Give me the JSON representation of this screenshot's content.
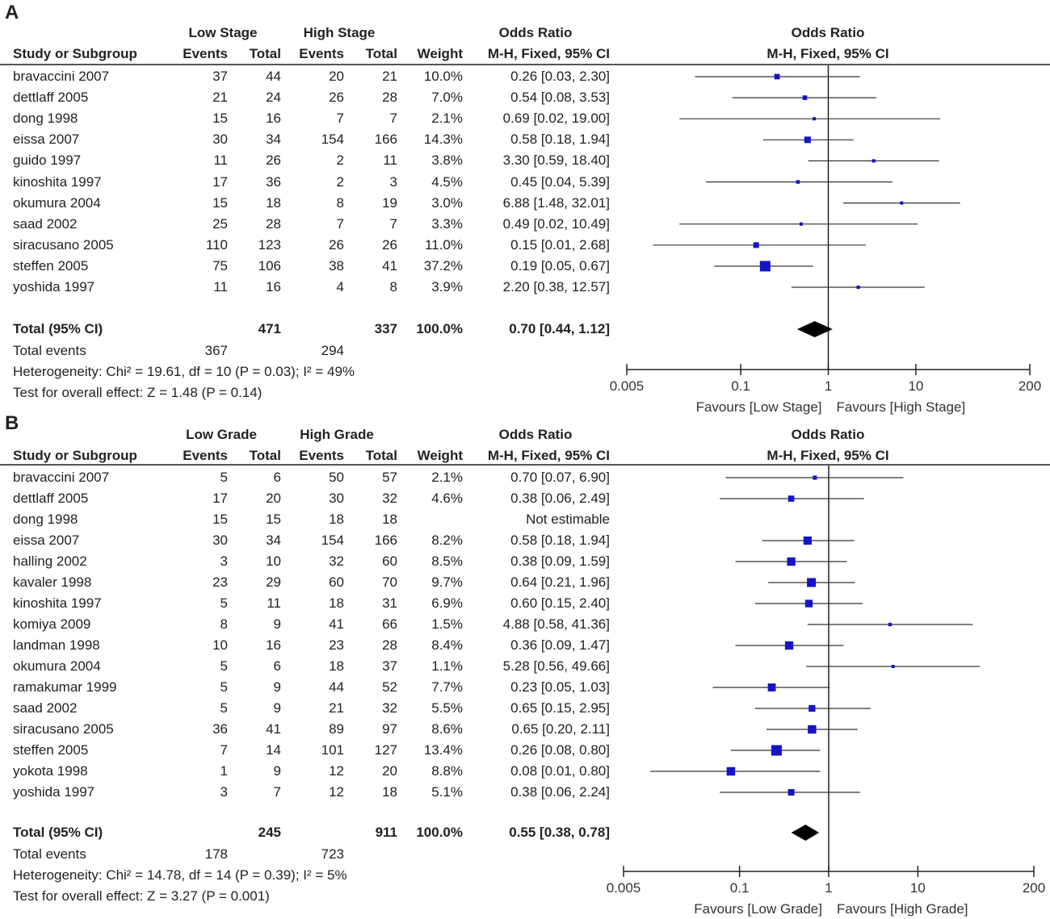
{
  "chart_data": [
    {
      "type": "forest",
      "panel_label": "A",
      "group_headers": {
        "low": "Low Stage",
        "high": "High Stage",
        "odds_ratio_left": "Odds Ratio",
        "odds_ratio_right": "Odds Ratio"
      },
      "columns": {
        "study": "Study or Subgroup",
        "events": "Events",
        "total": "Total",
        "weight": "Weight",
        "method_left": "M-H, Fixed, 95% CI",
        "method_right": "M-H, Fixed, 95% CI"
      },
      "studies": [
        {
          "name": "bravaccini 2007",
          "low_events": "37",
          "low_total": "44",
          "high_events": "20",
          "high_total": "21",
          "weight": "10.0%",
          "ci_text": "0.26 [0.03, 2.30]",
          "or": 0.26,
          "lo": 0.03,
          "hi": 2.3,
          "w": 10.0
        },
        {
          "name": "dettlaff 2005",
          "low_events": "21",
          "low_total": "24",
          "high_events": "26",
          "high_total": "28",
          "weight": "7.0%",
          "ci_text": "0.54 [0.08, 3.53]",
          "or": 0.54,
          "lo": 0.08,
          "hi": 3.53,
          "w": 7.0
        },
        {
          "name": "dong 1998",
          "low_events": "15",
          "low_total": "16",
          "high_events": "7",
          "high_total": "7",
          "weight": "2.1%",
          "ci_text": "0.69 [0.02, 19.00]",
          "or": 0.69,
          "lo": 0.02,
          "hi": 19.0,
          "w": 2.1
        },
        {
          "name": "eissa 2007",
          "low_events": "30",
          "low_total": "34",
          "high_events": "154",
          "high_total": "166",
          "weight": "14.3%",
          "ci_text": "0.58 [0.18, 1.94]",
          "or": 0.58,
          "lo": 0.18,
          "hi": 1.94,
          "w": 14.3
        },
        {
          "name": "guido 1997",
          "low_events": "11",
          "low_total": "26",
          "high_events": "2",
          "high_total": "11",
          "weight": "3.8%",
          "ci_text": "3.30 [0.59, 18.40]",
          "or": 3.3,
          "lo": 0.59,
          "hi": 18.4,
          "w": 3.8
        },
        {
          "name": "kinoshita 1997",
          "low_events": "17",
          "low_total": "36",
          "high_events": "2",
          "high_total": "3",
          "weight": "4.5%",
          "ci_text": "0.45 [0.04, 5.39]",
          "or": 0.45,
          "lo": 0.04,
          "hi": 5.39,
          "w": 4.5
        },
        {
          "name": "okumura 2004",
          "low_events": "15",
          "low_total": "18",
          "high_events": "8",
          "high_total": "19",
          "weight": "3.0%",
          "ci_text": "6.88 [1.48, 32.01]",
          "or": 6.88,
          "lo": 1.48,
          "hi": 32.01,
          "w": 3.0
        },
        {
          "name": "saad 2002",
          "low_events": "25",
          "low_total": "28",
          "high_events": "7",
          "high_total": "7",
          "weight": "3.3%",
          "ci_text": "0.49 [0.02, 10.49]",
          "or": 0.49,
          "lo": 0.02,
          "hi": 10.49,
          "w": 3.3
        },
        {
          "name": "siracusano 2005",
          "low_events": "110",
          "low_total": "123",
          "high_events": "26",
          "high_total": "26",
          "weight": "11.0%",
          "ci_text": "0.15 [0.01, 2.68]",
          "or": 0.15,
          "lo": 0.01,
          "hi": 2.68,
          "w": 11.0
        },
        {
          "name": "steffen 2005",
          "low_events": "75",
          "low_total": "106",
          "high_events": "38",
          "high_total": "41",
          "weight": "37.2%",
          "ci_text": "0.19 [0.05, 0.67]",
          "or": 0.19,
          "lo": 0.05,
          "hi": 0.67,
          "w": 37.2
        },
        {
          "name": "yoshida 1997",
          "low_events": "11",
          "low_total": "16",
          "high_events": "4",
          "high_total": "8",
          "weight": "3.9%",
          "ci_text": "2.20 [0.38, 12.57]",
          "or": 2.2,
          "lo": 0.38,
          "hi": 12.57,
          "w": 3.9
        }
      ],
      "total": {
        "label": "Total (95% CI)",
        "low_total": "471",
        "high_total": "337",
        "weight": "100.0%",
        "ci_text": "0.70 [0.44, 1.12]",
        "or": 0.7,
        "lo": 0.44,
        "hi": 1.12
      },
      "total_events": {
        "label": "Total events",
        "low": "367",
        "high": "294"
      },
      "heterogeneity": "Heterogeneity: Chi² = 19.61, df = 10 (P = 0.03); I² = 49%",
      "overall_effect": "Test for overall effect: Z = 1.48 (P = 0.14)",
      "x_scale": "log",
      "xlim": [
        0.005,
        200
      ],
      "x_ticks": [
        0.005,
        0.1,
        1,
        10,
        200
      ],
      "x_tick_labels": [
        "0.005",
        "0.1",
        "1",
        "10",
        "200"
      ],
      "favours_left": "Favours [Low Stage]",
      "favours_right": "Favours [High Stage]"
    },
    {
      "type": "forest",
      "panel_label": "B",
      "group_headers": {
        "low": "Low Grade",
        "high": "High Grade",
        "odds_ratio_left": "Odds Ratio",
        "odds_ratio_right": "Odds Ratio"
      },
      "columns": {
        "study": "Study or Subgroup",
        "events": "Events",
        "total": "Total",
        "weight": "Weight",
        "method_left": "M-H, Fixed, 95% CI",
        "method_right": "M-H, Fixed, 95% CI"
      },
      "studies": [
        {
          "name": "bravaccini 2007",
          "low_events": "5",
          "low_total": "6",
          "high_events": "50",
          "high_total": "57",
          "weight": "2.1%",
          "ci_text": "0.70 [0.07, 6.90]",
          "or": 0.7,
          "lo": 0.07,
          "hi": 6.9,
          "w": 2.1
        },
        {
          "name": "dettlaff 2005",
          "low_events": "17",
          "low_total": "20",
          "high_events": "30",
          "high_total": "32",
          "weight": "4.6%",
          "ci_text": "0.38 [0.06, 2.49]",
          "or": 0.38,
          "lo": 0.06,
          "hi": 2.49,
          "w": 4.6
        },
        {
          "name": "dong 1998",
          "low_events": "15",
          "low_total": "15",
          "high_events": "18",
          "high_total": "18",
          "weight": "",
          "ci_text": "Not estimable",
          "or": null,
          "lo": null,
          "hi": null,
          "w": 0
        },
        {
          "name": "eissa 2007",
          "low_events": "30",
          "low_total": "34",
          "high_events": "154",
          "high_total": "166",
          "weight": "8.2%",
          "ci_text": "0.58 [0.18, 1.94]",
          "or": 0.58,
          "lo": 0.18,
          "hi": 1.94,
          "w": 8.2
        },
        {
          "name": "halling 2002",
          "low_events": "3",
          "low_total": "10",
          "high_events": "32",
          "high_total": "60",
          "weight": "8.5%",
          "ci_text": "0.38 [0.09, 1.59]",
          "or": 0.38,
          "lo": 0.09,
          "hi": 1.59,
          "w": 8.5
        },
        {
          "name": "kavaler 1998",
          "low_events": "23",
          "low_total": "29",
          "high_events": "60",
          "high_total": "70",
          "weight": "9.7%",
          "ci_text": "0.64 [0.21, 1.96]",
          "or": 0.64,
          "lo": 0.21,
          "hi": 1.96,
          "w": 9.7
        },
        {
          "name": "kinoshita 1997",
          "low_events": "5",
          "low_total": "11",
          "high_events": "18",
          "high_total": "31",
          "weight": "6.9%",
          "ci_text": "0.60 [0.15, 2.40]",
          "or": 0.6,
          "lo": 0.15,
          "hi": 2.4,
          "w": 6.9
        },
        {
          "name": "komiya 2009",
          "low_events": "8",
          "low_total": "9",
          "high_events": "41",
          "high_total": "66",
          "weight": "1.5%",
          "ci_text": "4.88 [0.58, 41.36]",
          "or": 4.88,
          "lo": 0.58,
          "hi": 41.36,
          "w": 1.5
        },
        {
          "name": "landman 1998",
          "low_events": "10",
          "low_total": "16",
          "high_events": "23",
          "high_total": "28",
          "weight": "8.4%",
          "ci_text": "0.36 [0.09, 1.47]",
          "or": 0.36,
          "lo": 0.09,
          "hi": 1.47,
          "w": 8.4
        },
        {
          "name": "okumura 2004",
          "low_events": "5",
          "low_total": "6",
          "high_events": "18",
          "high_total": "37",
          "weight": "1.1%",
          "ci_text": "5.28 [0.56, 49.66]",
          "or": 5.28,
          "lo": 0.56,
          "hi": 49.66,
          "w": 1.1
        },
        {
          "name": "ramakumar 1999",
          "low_events": "5",
          "low_total": "9",
          "high_events": "44",
          "high_total": "52",
          "weight": "7.7%",
          "ci_text": "0.23 [0.05, 1.03]",
          "or": 0.23,
          "lo": 0.05,
          "hi": 1.03,
          "w": 7.7
        },
        {
          "name": "saad 2002",
          "low_events": "5",
          "low_total": "9",
          "high_events": "21",
          "high_total": "32",
          "weight": "5.5%",
          "ci_text": "0.65 [0.15, 2.95]",
          "or": 0.65,
          "lo": 0.15,
          "hi": 2.95,
          "w": 5.5
        },
        {
          "name": "siracusano 2005",
          "low_events": "36",
          "low_total": "41",
          "high_events": "89",
          "high_total": "97",
          "weight": "8.6%",
          "ci_text": "0.65 [0.20, 2.11]",
          "or": 0.65,
          "lo": 0.2,
          "hi": 2.11,
          "w": 8.6
        },
        {
          "name": "steffen 2005",
          "low_events": "7",
          "low_total": "14",
          "high_events": "101",
          "high_total": "127",
          "weight": "13.4%",
          "ci_text": "0.26 [0.08, 0.80]",
          "or": 0.26,
          "lo": 0.08,
          "hi": 0.8,
          "w": 13.4
        },
        {
          "name": "yokota 1998",
          "low_events": "1",
          "low_total": "9",
          "high_events": "12",
          "high_total": "20",
          "weight": "8.8%",
          "ci_text": "0.08 [0.01, 0.80]",
          "or": 0.08,
          "lo": 0.01,
          "hi": 0.8,
          "w": 8.8
        },
        {
          "name": "yoshida 1997",
          "low_events": "3",
          "low_total": "7",
          "high_events": "12",
          "high_total": "18",
          "weight": "5.1%",
          "ci_text": "0.38 [0.06, 2.24]",
          "or": 0.38,
          "lo": 0.06,
          "hi": 2.24,
          "w": 5.1
        }
      ],
      "total": {
        "label": "Total (95% CI)",
        "low_total": "245",
        "high_total": "911",
        "weight": "100.0%",
        "ci_text": "0.55 [0.38, 0.78]",
        "or": 0.55,
        "lo": 0.38,
        "hi": 0.78
      },
      "total_events": {
        "label": "Total events",
        "low": "178",
        "high": "723"
      },
      "heterogeneity": "Heterogeneity: Chi² = 14.78, df = 14 (P = 0.39); I² = 5%",
      "overall_effect": "Test for overall effect: Z = 3.27 (P = 0.001)",
      "x_scale": "log",
      "xlim": [
        0.005,
        200
      ],
      "x_ticks": [
        0.005,
        0.1,
        1,
        10,
        200
      ],
      "x_tick_labels": [
        "0.005",
        "0.1",
        "1",
        "10",
        "200"
      ],
      "favours_left": "Favours [Low Grade]",
      "favours_right": "Favours [High Grade]"
    }
  ]
}
